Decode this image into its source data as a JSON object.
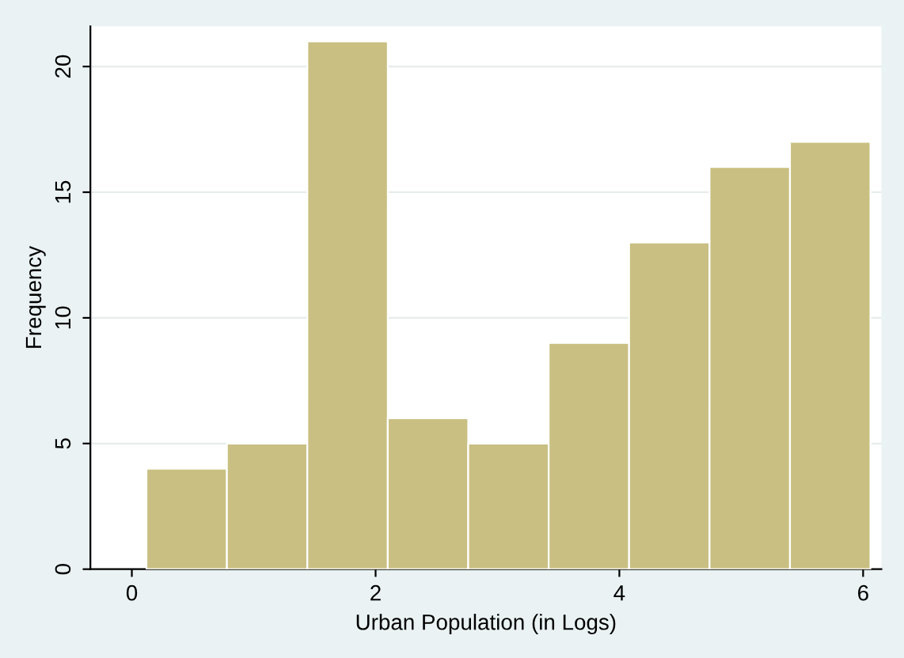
{
  "chart_data": {
    "type": "histogram",
    "xlabel": "Urban Population (in Logs)",
    "ylabel": "Frequency",
    "bins": [
      0.12,
      0.78,
      1.44,
      2.1,
      2.76,
      3.42,
      4.08,
      4.74,
      5.4,
      6.06
    ],
    "values": [
      4,
      5,
      21,
      6,
      5,
      9,
      13,
      16,
      17
    ],
    "color": "#c9bf82",
    "xlim": [
      -0.34,
      6.15
    ],
    "ylim": [
      0,
      21.6
    ],
    "xticks": [
      0,
      2,
      4,
      6
    ],
    "yticks": [
      0,
      5,
      10,
      15,
      20
    ],
    "grid": "y"
  }
}
